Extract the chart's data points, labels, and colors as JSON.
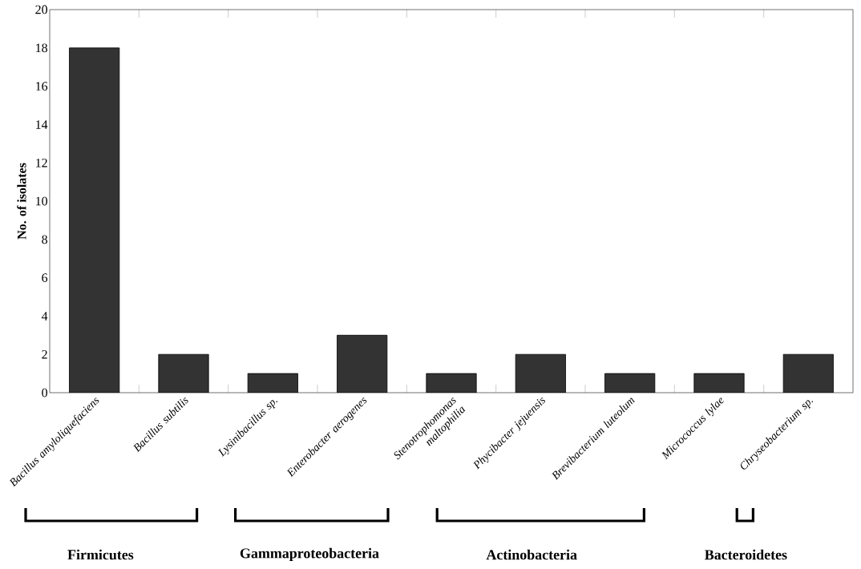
{
  "chart_data": {
    "type": "bar",
    "ylabel": "No. of isolates",
    "categories": [
      "Bacillus amyloliquefaciens",
      "Bacillus subtilis",
      "Lysinibacillus  sp.",
      "Enterobacter aerogenes",
      "Stenotrophomonas maltophilia",
      "Phycibacter jejuensis",
      "Brevibacterium luteolum",
      "Micrococcus lylae",
      "Chryseobacterium sp."
    ],
    "values": [
      18,
      2,
      1,
      3,
      1,
      2,
      1,
      1,
      2
    ],
    "color": "#333333",
    "ylim": [
      0,
      20
    ],
    "yticks": [
      0,
      2,
      4,
      6,
      8,
      10,
      12,
      14,
      16,
      18,
      20
    ],
    "annotations": [
      "Firmicutes",
      "Gammaproteobacteria",
      "Actinobacteria",
      "Bacteroidetes"
    ]
  }
}
